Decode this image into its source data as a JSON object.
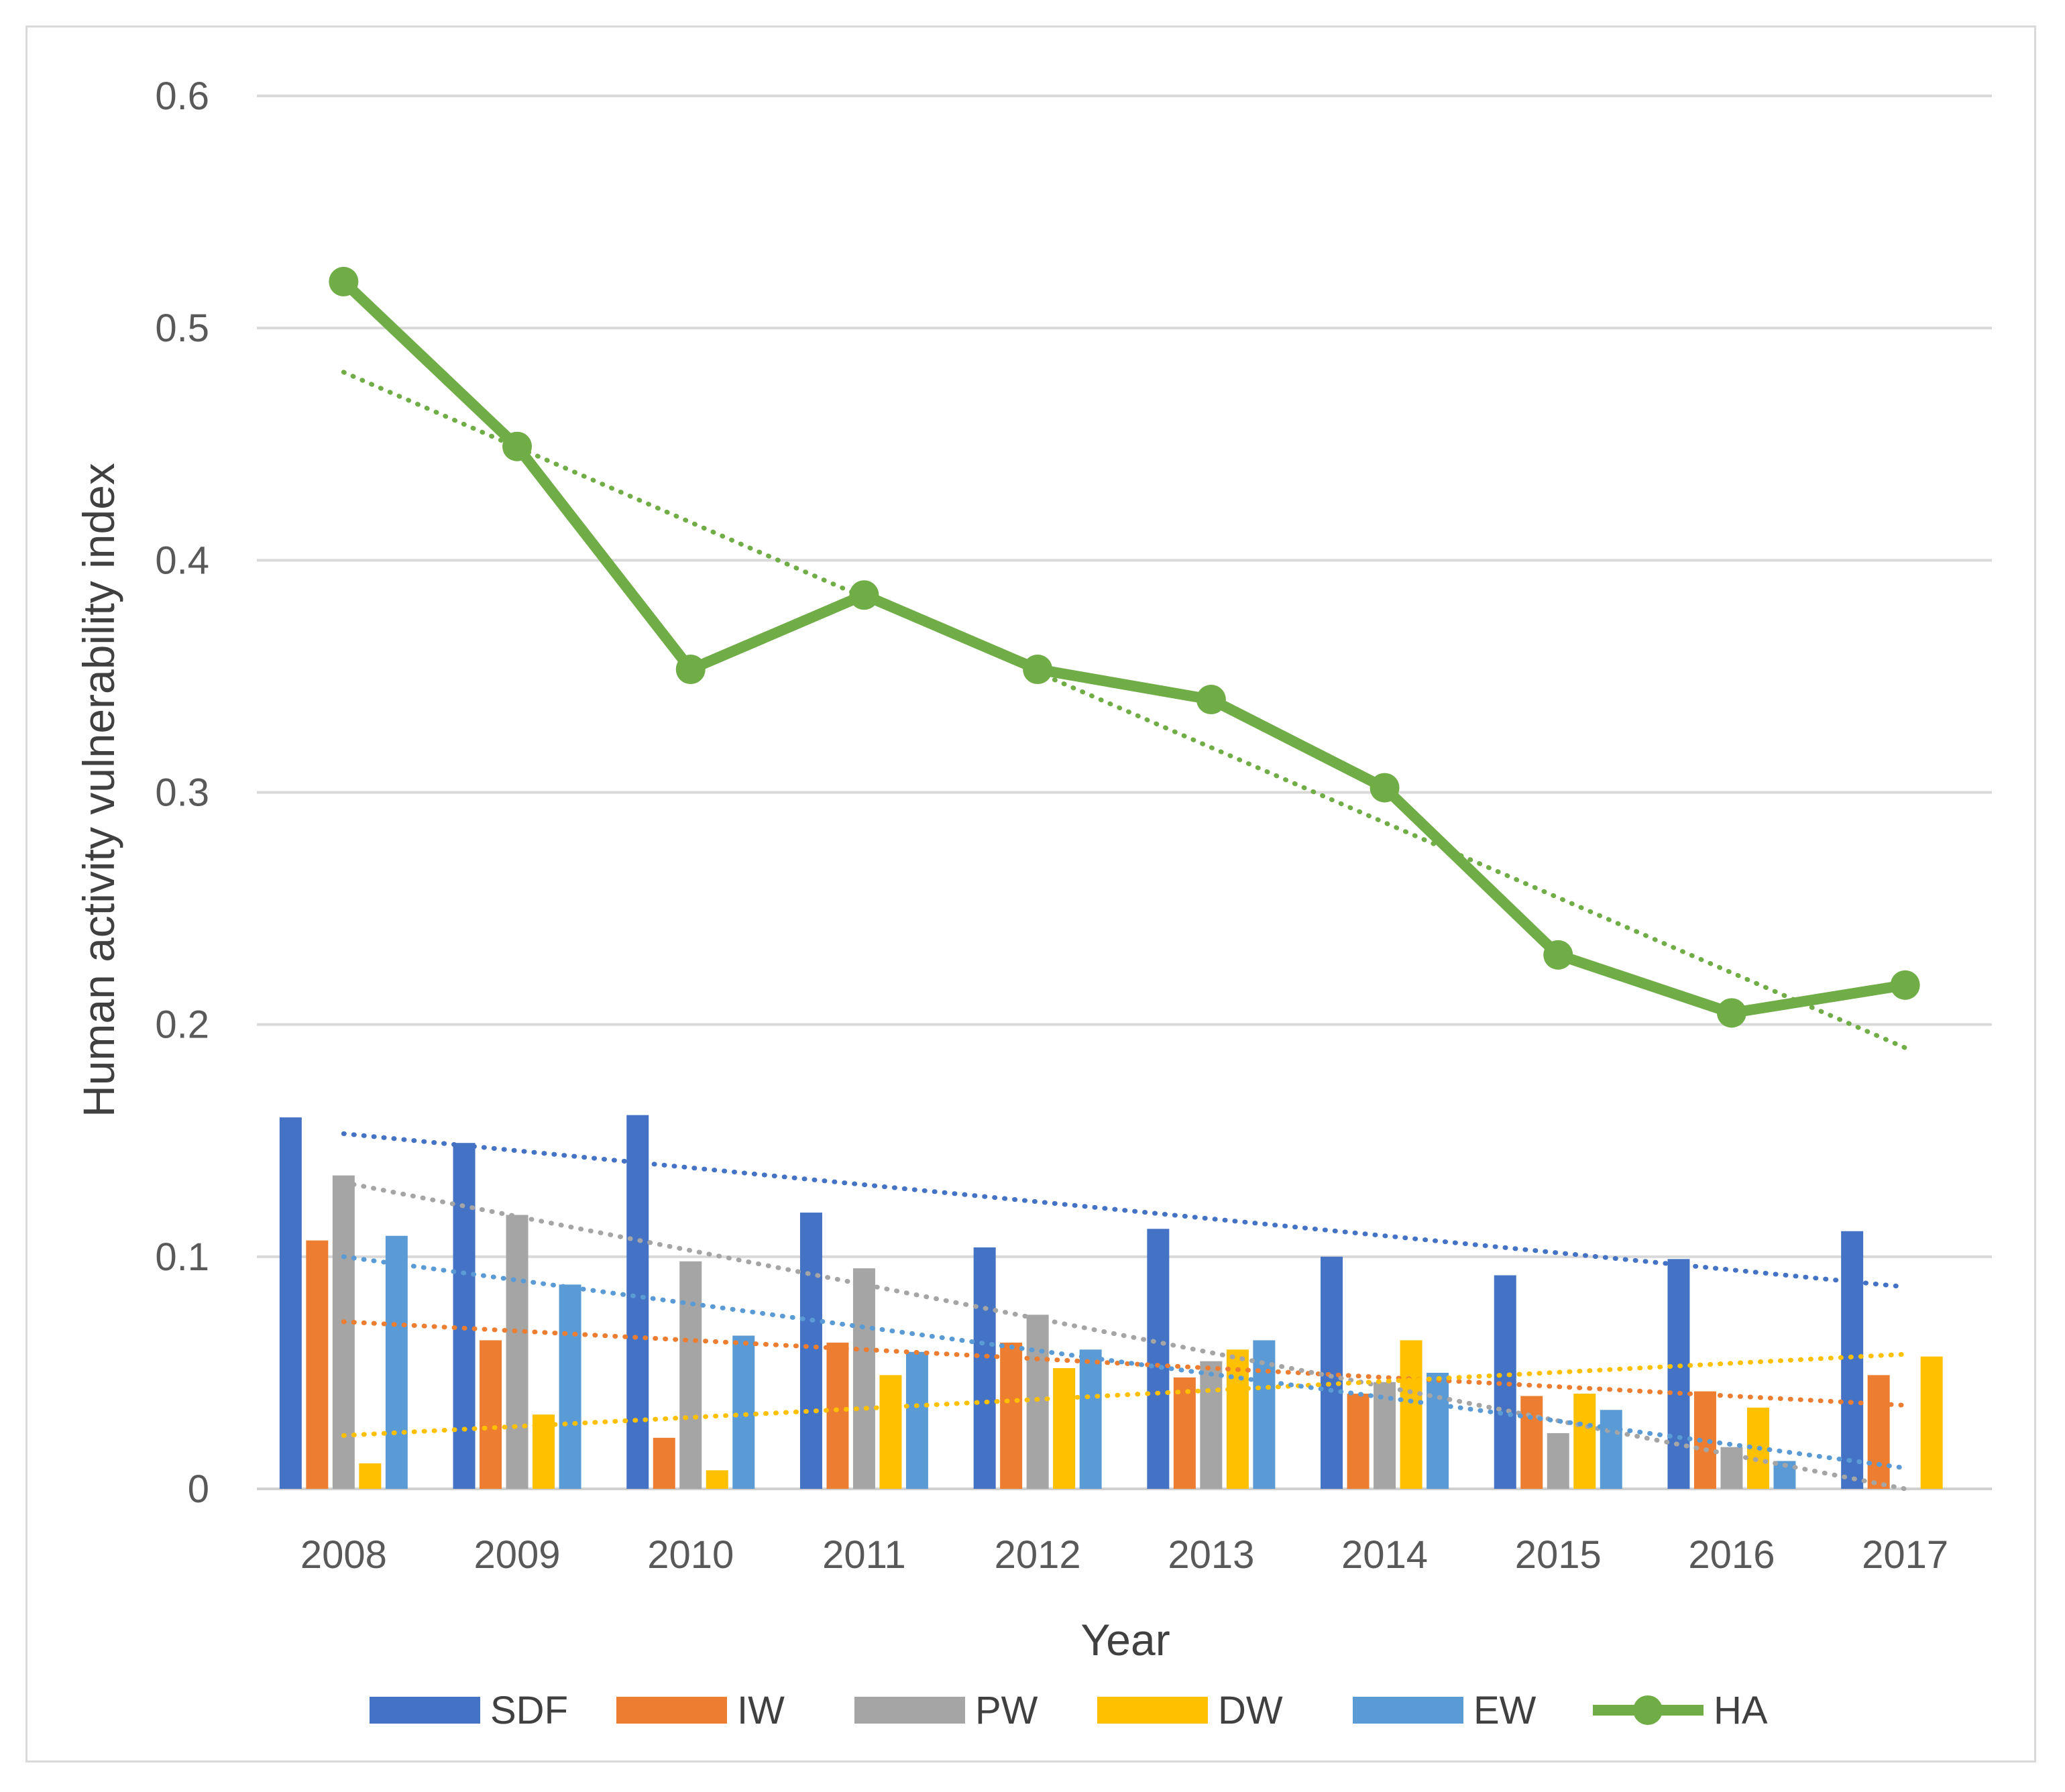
{
  "chart_data": {
    "type": "bar",
    "title": "",
    "xlabel": "Year",
    "ylabel": "Human activity vulnerability index",
    "ylim": [
      0,
      0.6
    ],
    "yticks": [
      "0",
      "0.1",
      "0.2",
      "0.3",
      "0.4",
      "0.5",
      "0.6"
    ],
    "grid": true,
    "legend_position": "bottom",
    "categories": [
      "2008",
      "2009",
      "2010",
      "2011",
      "2012",
      "2013",
      "2014",
      "2015",
      "2016",
      "2017"
    ],
    "series": [
      {
        "name": "SDF",
        "type": "bar",
        "color": "#4472C4",
        "values": [
          0.16,
          0.149,
          0.161,
          0.119,
          0.104,
          0.112,
          0.1,
          0.092,
          0.099,
          0.111
        ],
        "trend": [
          0.153,
          0.087
        ]
      },
      {
        "name": "IW",
        "type": "bar",
        "color": "#ED7D31",
        "values": [
          0.107,
          0.064,
          0.022,
          0.063,
          0.063,
          0.048,
          0.041,
          0.04,
          0.042,
          0.049
        ],
        "trend": [
          0.072,
          0.036
        ]
      },
      {
        "name": "PW",
        "type": "bar",
        "color": "#A5A5A5",
        "values": [
          0.135,
          0.118,
          0.098,
          0.095,
          0.075,
          0.055,
          0.046,
          0.024,
          0.018,
          0.0
        ],
        "trend": [
          0.132,
          0.0
        ]
      },
      {
        "name": "DW",
        "type": "bar",
        "color": "#FFC000",
        "values": [
          0.011,
          0.032,
          0.008,
          0.049,
          0.052,
          0.06,
          0.064,
          0.041,
          0.035,
          0.057
        ],
        "trend": [
          0.023,
          0.058
        ]
      },
      {
        "name": "EW",
        "type": "bar",
        "color": "#5B9BD5",
        "values": [
          0.109,
          0.088,
          0.066,
          0.059,
          0.06,
          0.064,
          0.05,
          0.034,
          0.012,
          0.0
        ],
        "trend": [
          0.1,
          0.009
        ]
      },
      {
        "name": "HA",
        "type": "line",
        "color": "#70AD47",
        "values": [
          0.52,
          0.449,
          0.353,
          0.385,
          0.353,
          0.34,
          0.302,
          0.23,
          0.205,
          0.217
        ],
        "trend": [
          0.481,
          0.19
        ]
      }
    ]
  }
}
